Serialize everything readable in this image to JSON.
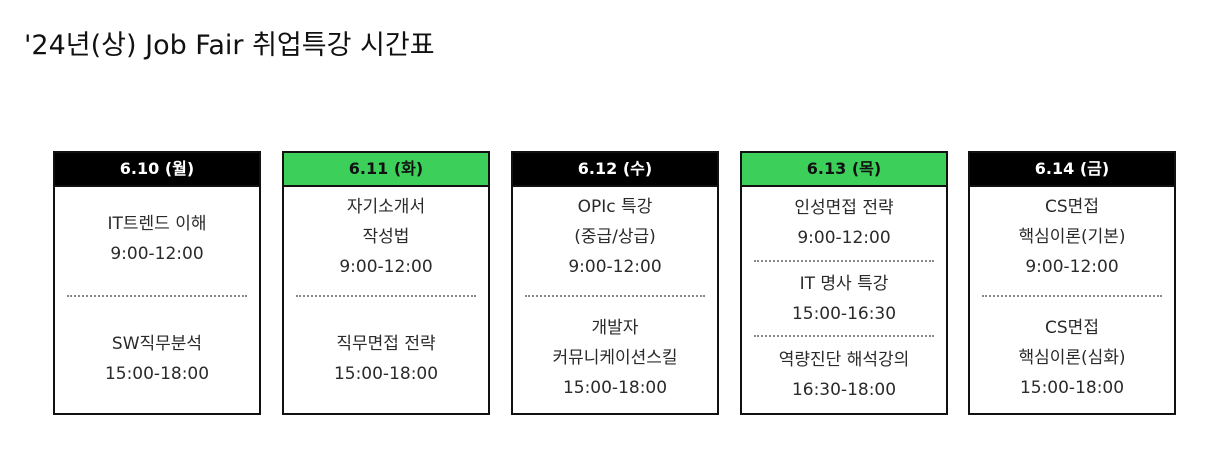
{
  "title": "'24년(상) Job Fair 취업특강 시간표",
  "header_colors": {
    "dark": "#000000",
    "green": "#3ccf5a"
  },
  "days": [
    {
      "date": "6.10 (월)",
      "header_style": "dark",
      "sessions": [
        {
          "lines": [
            "IT트렌드 이해"
          ],
          "time": "9:00-12:00"
        },
        {
          "lines": [
            "SW직무분석"
          ],
          "time": "15:00-18:00"
        }
      ]
    },
    {
      "date": "6.11 (화)",
      "header_style": "green",
      "sessions": [
        {
          "lines": [
            "자기소개서",
            "작성법"
          ],
          "time": "9:00-12:00"
        },
        {
          "lines": [
            "직무면접 전략"
          ],
          "time": "15:00-18:00"
        }
      ]
    },
    {
      "date": "6.12 (수)",
      "header_style": "dark",
      "sessions": [
        {
          "lines": [
            "OPIc 특강",
            "(중급/상급)"
          ],
          "time": "9:00-12:00"
        },
        {
          "lines": [
            "개발자",
            "커뮤니케이션스킬"
          ],
          "time": "15:00-18:00"
        }
      ]
    },
    {
      "date": "6.13 (목)",
      "header_style": "green",
      "sessions": [
        {
          "lines": [
            "인성면접 전략"
          ],
          "time": "9:00-12:00"
        },
        {
          "lines": [
            "IT 명사 특강"
          ],
          "time": "15:00-16:30"
        },
        {
          "lines": [
            "역량진단 해석강의"
          ],
          "time": "16:30-18:00"
        }
      ]
    },
    {
      "date": "6.14 (금)",
      "header_style": "dark",
      "sessions": [
        {
          "lines": [
            "CS면접",
            "핵심이론(기본)"
          ],
          "time": "9:00-12:00"
        },
        {
          "lines": [
            "CS면접",
            "핵심이론(심화)"
          ],
          "time": "15:00-18:00"
        }
      ]
    }
  ]
}
